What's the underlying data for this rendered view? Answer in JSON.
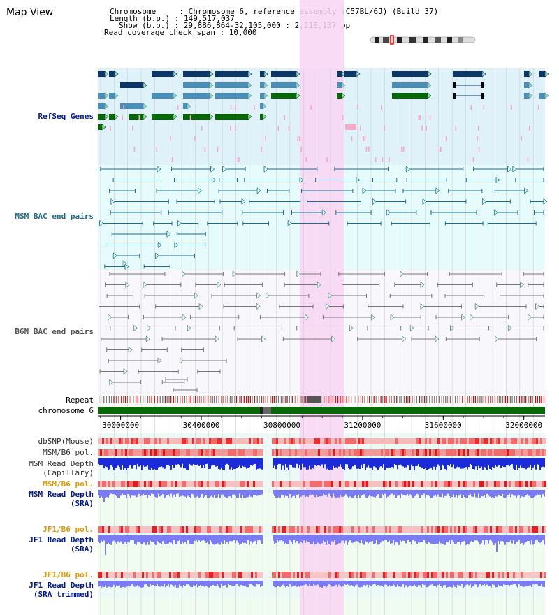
{
  "map": {
    "title": "Map View",
    "info_lines": [
      "Chromosome     : Chromosome 6, reference assembly (C57BL/6J) (Build 37)",
      "Length (b.p.) : 149,517,037",
      "Show (b.p.) : 29,886,864-32,105,000 : 2,218,137 bp",
      "Read coverage check span : 10,000"
    ]
  },
  "tracks": {
    "refseq_label": "RefSeq Genes",
    "msm_bac_label": "MSM BAC end pairs",
    "b6n_bac_label": "B6N BAC end pairs",
    "repeat_label": "Repeat",
    "chromosome_label": "chromosome 6",
    "dbsnp_label": "dbSNP(Mouse)",
    "msm_b6_pol_label": "MSM/B6 pol.",
    "msm_depth_cap_label_1": "MSM Read Depth",
    "msm_depth_cap_label_2": "(Capillary)",
    "msm_b6_pol2_label": "MSM/B6 pol.",
    "msm_depth_sra_label_1": "MSM Read Depth",
    "msm_depth_sra_label_2": "(SRA)",
    "jf1_pol_label": "JF1/B6 pol.",
    "jf1_depth_label_1": "JF1 Read Depth",
    "jf1_depth_label_2": "(SRA)",
    "jf1_pol2_label": "JF1/B6 pol.",
    "jf1_trim_label_1": "JF1 Read Depth",
    "jf1_trim_label_2": "(SRA trimmed)"
  },
  "axis": {
    "ticks": [
      "30000000",
      "30400000",
      "30800000",
      "31200000",
      "31600000",
      "32000000"
    ],
    "tick_values": [
      30000000,
      30400000,
      30800000,
      31200000,
      31600000,
      32000000
    ],
    "range": [
      29886864,
      32105000
    ]
  },
  "colors": {
    "refseq_bg": "#dff2fa",
    "msm_bg": "#e6fbfb",
    "b6n_bg": "#f8f8fc",
    "highlight": "#f9d5f3",
    "dark_gene": "#0b3669",
    "mid_gene": "#4a8fba",
    "green_gene": "#066806",
    "pink_tick": "#f8a7c8",
    "msm_line": "#1f6b8f",
    "b6n_line": "#777777",
    "chromosome": "#076807",
    "depth_dark": "#1b2bd9",
    "depth_light": "#7b7bf5",
    "label_dark_blue": "#001a9e",
    "label_orange": "#e69a00",
    "label_teal": "#1c6f8e",
    "label_grey": "#555555"
  }
}
